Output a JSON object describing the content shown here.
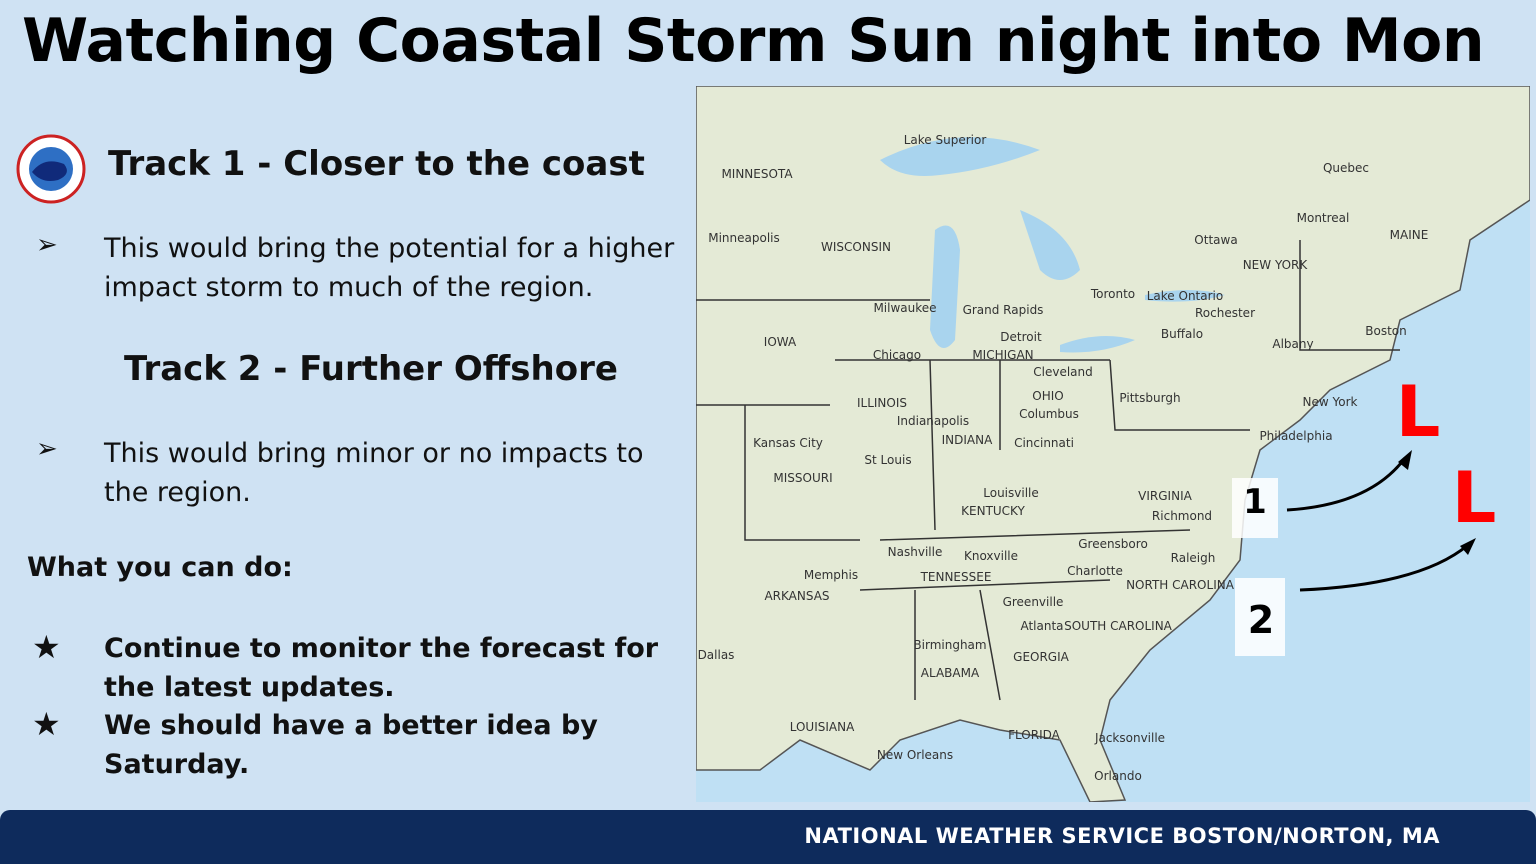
{
  "header": {
    "title": "Watching Coastal Storm Sun night into Mon"
  },
  "track1": {
    "heading": "Track 1 - Closer to the coast",
    "marker": "➢",
    "bullet": "This would bring the potential for a higher impact storm to much of the region."
  },
  "track2": {
    "heading": "Track 2 - Further Offshore",
    "marker": "➢",
    "bullet": "This would bring minor or no impacts to the region."
  },
  "actions": {
    "heading": "What you can do:",
    "items": [
      {
        "marker": "★",
        "text": "Continue to monitor the forecast for the latest updates."
      },
      {
        "marker": "★",
        "text": "We should have a better idea by Saturday."
      }
    ]
  },
  "map": {
    "labels": [
      "Lake Superior",
      "MINNESOTA",
      "Minneapolis",
      "WISCONSIN",
      "IOWA",
      "Milwaukee",
      "Grand Rapids",
      "Detroit",
      "MICHIGAN",
      "Chicago",
      "Toronto",
      "Lake Ontario",
      "Rochester",
      "Buffalo",
      "Quebec",
      "Montreal",
      "Ottawa",
      "MAINE",
      "NEW YORK",
      "Boston",
      "Albany",
      "Cleveland",
      "OHIO",
      "Columbus",
      "Pittsburgh",
      "New York",
      "Philadelphia",
      "ILLINOIS",
      "Indianapolis",
      "INDIANA",
      "Cincinnati",
      "Kansas City",
      "St Louis",
      "MISSOURI",
      "Louisville",
      "KENTUCKY",
      "VIRGINIA",
      "Richmond",
      "Nashville",
      "Knoxville",
      "Greensboro",
      "Raleigh",
      "Memphis",
      "TENNESSEE",
      "Charlotte",
      "NORTH CAROLINA",
      "ARKANSAS",
      "Greenville",
      "SOUTH CAROLINA",
      "Atlanta",
      "Dallas",
      "Birmingham",
      "GEORGIA",
      "ALABAMA",
      "LOUISIANA",
      "FLORIDA",
      "Jacksonville",
      "New Orleans",
      "Orlando"
    ],
    "lows": [
      "L",
      "L"
    ],
    "tracks": [
      "1",
      "2"
    ]
  },
  "footer": {
    "text": "NATIONAL WEATHER SERVICE BOSTON/NORTON, MA"
  }
}
